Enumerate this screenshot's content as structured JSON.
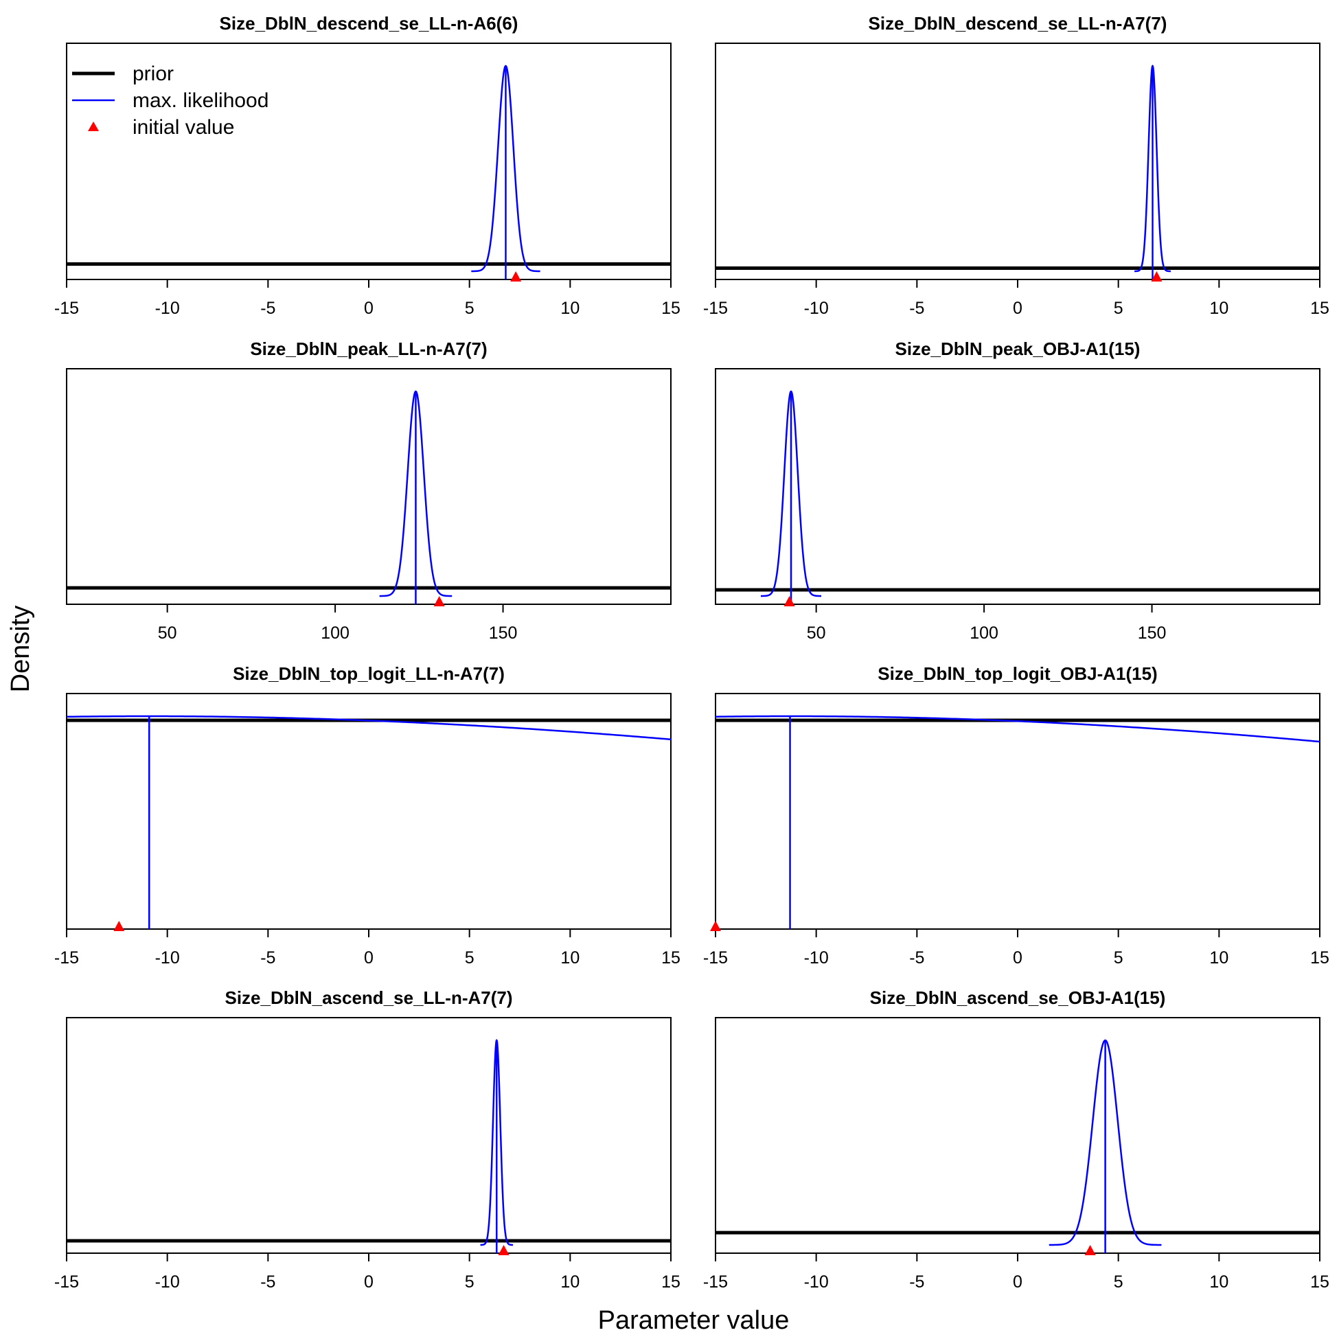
{
  "figure": {
    "ylabel": "Density",
    "xlabel": "Parameter value",
    "legend": {
      "placement": "top-left of first panel",
      "entries": [
        {
          "label": "prior",
          "style": "thick-line",
          "color": "#000000"
        },
        {
          "label": "max. likelihood",
          "style": "thin-line",
          "color": "#0000ff"
        },
        {
          "label": "initial value",
          "style": "triangle",
          "color": "#ff0000"
        }
      ]
    }
  },
  "chart_data": [
    {
      "type": "line",
      "title": "Size_DblN_descend_se_LL-n-A6(6)",
      "xlim": [
        -15,
        15
      ],
      "xticks": [
        -15,
        -10,
        -5,
        0,
        5,
        10,
        15
      ],
      "series": [
        {
          "name": "prior",
          "kind": "flat",
          "relative_height": 0.035
        },
        {
          "name": "max. likelihood",
          "kind": "normal",
          "mean": 6.8,
          "sd": 0.38,
          "mle": 6.8
        }
      ],
      "initial_value": 7.3
    },
    {
      "type": "line",
      "title": "Size_DblN_descend_se_LL-n-A7(7)",
      "xlim": [
        -15,
        15
      ],
      "xticks": [
        -15,
        -10,
        -5,
        0,
        5,
        10,
        15
      ],
      "series": [
        {
          "name": "prior",
          "kind": "flat",
          "relative_height": 0.015
        },
        {
          "name": "max. likelihood",
          "kind": "normal",
          "mean": 6.7,
          "sd": 0.2,
          "mle": 6.7
        }
      ],
      "initial_value": 6.9
    },
    {
      "type": "line",
      "title": "Size_DblN_peak_LL-n-A7(7)",
      "xlim": [
        20,
        200
      ],
      "xticks": [
        50,
        100,
        150
      ],
      "series": [
        {
          "name": "prior",
          "kind": "flat",
          "relative_height": 0.04
        },
        {
          "name": "max. likelihood",
          "kind": "normal",
          "mean": 124,
          "sd": 2.4,
          "mle": 124
        }
      ],
      "initial_value": 131
    },
    {
      "type": "line",
      "title": "Size_DblN_peak_OBJ-A1(15)",
      "xlim": [
        20,
        200
      ],
      "xticks": [
        50,
        100,
        150
      ],
      "series": [
        {
          "name": "prior",
          "kind": "flat",
          "relative_height": 0.03
        },
        {
          "name": "max. likelihood",
          "kind": "normal",
          "mean": 42.5,
          "sd": 2.0,
          "mle": 42.5
        }
      ],
      "initial_value": 42
    },
    {
      "type": "line",
      "title": "Size_DblN_top_logit_LL-n-A7(7)",
      "xlim": [
        -15,
        15
      ],
      "xticks": [
        -15,
        -10,
        -5,
        0,
        5,
        10,
        15
      ],
      "series": [
        {
          "name": "prior",
          "kind": "flat",
          "relative_height": 0.98
        },
        {
          "name": "max. likelihood",
          "kind": "normal",
          "mean": -11,
          "sd": 53,
          "mle": -10.9
        }
      ],
      "initial_value": -12.4
    },
    {
      "type": "line",
      "title": "Size_DblN_top_logit_OBJ-A1(15)",
      "xlim": [
        -15,
        15
      ],
      "xticks": [
        -15,
        -10,
        -5,
        0,
        5,
        10,
        15
      ],
      "series": [
        {
          "name": "prior",
          "kind": "flat",
          "relative_height": 0.98
        },
        {
          "name": "max. likelihood",
          "kind": "normal",
          "mean": -11.3,
          "sd": 51,
          "mle": -11.3
        }
      ],
      "initial_value": -15
    },
    {
      "type": "line",
      "title": "Size_DblN_ascend_se_LL-n-A7(7)",
      "xlim": [
        -15,
        15
      ],
      "xticks": [
        -15,
        -10,
        -5,
        0,
        5,
        10,
        15
      ],
      "series": [
        {
          "name": "prior",
          "kind": "flat",
          "relative_height": 0.02
        },
        {
          "name": "max. likelihood",
          "kind": "normal",
          "mean": 6.35,
          "sd": 0.18,
          "mle": 6.35
        }
      ],
      "initial_value": 6.7
    },
    {
      "type": "line",
      "title": "Size_DblN_ascend_se_OBJ-A1(15)",
      "xlim": [
        -15,
        15
      ],
      "xticks": [
        -15,
        -10,
        -5,
        0,
        5,
        10,
        15
      ],
      "series": [
        {
          "name": "prior",
          "kind": "flat",
          "relative_height": 0.06
        },
        {
          "name": "max. likelihood",
          "kind": "normal",
          "mean": 4.35,
          "sd": 0.62,
          "mle": 4.35
        }
      ],
      "initial_value": 3.6
    }
  ]
}
